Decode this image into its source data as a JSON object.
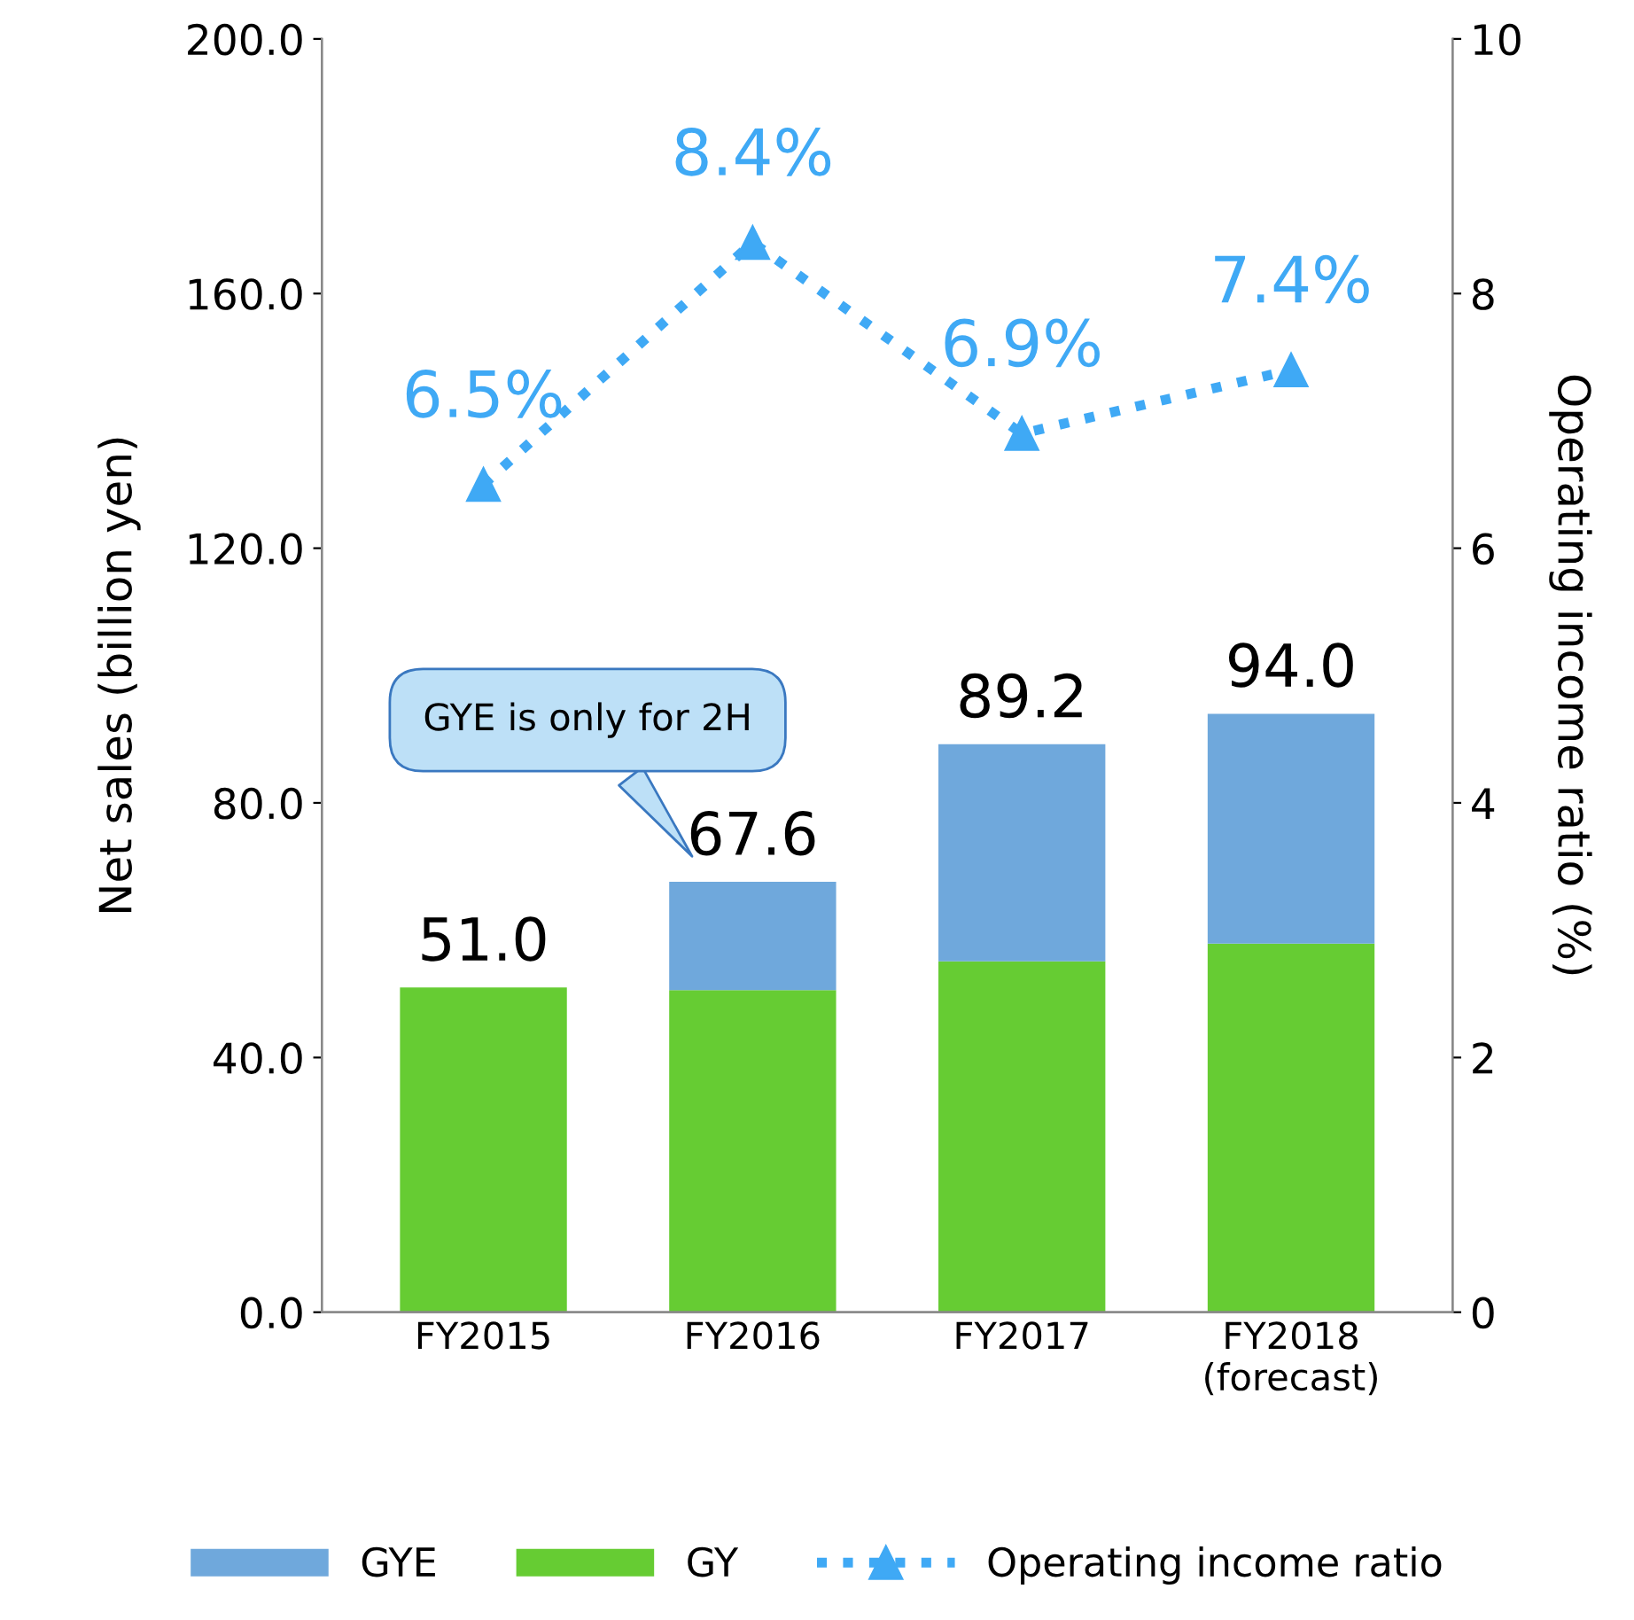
{
  "chart_data": {
    "type": "bar",
    "stacked": true,
    "categories": [
      "FY2015",
      "FY2016",
      "FY2017",
      "FY2018\n(forecast)"
    ],
    "series": [
      {
        "name": "GY",
        "color": "#66cc33",
        "values": [
          51.0,
          50.6,
          55.1,
          57.9
        ]
      },
      {
        "name": "GYE",
        "color": "#6fa8dc",
        "values": [
          null,
          17.0,
          34.1,
          36.1
        ]
      },
      {
        "name": "Operating income ratio",
        "type": "line",
        "axis": "y2",
        "color": "#3fa9f5",
        "values": [
          6.5,
          8.4,
          6.9,
          7.4
        ],
        "value_labels": [
          "6.5%",
          "8.4%",
          "6.9%",
          "7.4%"
        ],
        "marker": "triangle",
        "line_style": "dotted"
      }
    ],
    "totals": [
      "51.0",
      "67.6",
      "89.2",
      "94.0"
    ],
    "ylabel": "Net sales (billion yen)",
    "y2label": "Operating income ratio (%)",
    "ylim": [
      0,
      200
    ],
    "yticks": [
      {
        "value": 0,
        "label": "0.0"
      },
      {
        "value": 40,
        "label": "40.0"
      },
      {
        "value": 80,
        "label": "80.0"
      },
      {
        "value": 120,
        "label": "120.0"
      },
      {
        "value": 160,
        "label": "160.0"
      },
      {
        "value": 200,
        "label": "200.0"
      }
    ],
    "y2lim": [
      0,
      10
    ],
    "y2ticks": [
      0,
      2,
      4,
      6,
      8,
      10
    ],
    "annotations": [
      "GYE is only for 2H"
    ],
    "legend": "bottom",
    "grid": false
  }
}
